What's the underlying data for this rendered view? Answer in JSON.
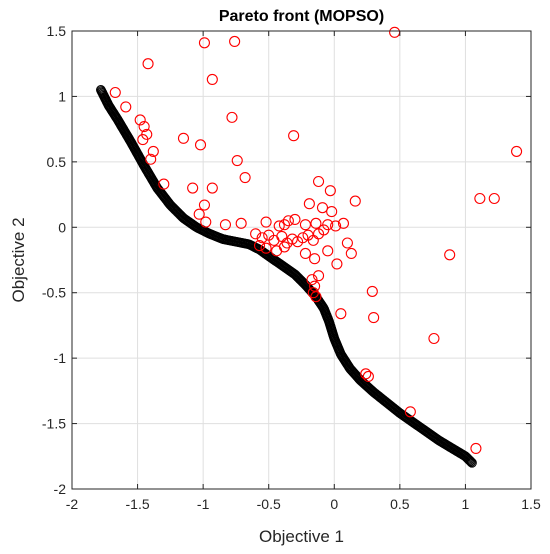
{
  "chart_data": {
    "type": "scatter",
    "title": "Pareto front (MOPSO)",
    "xlabel": "Objective 1",
    "ylabel": "Objective 2",
    "xlim": [
      -2,
      1.5
    ],
    "ylim": [
      -2,
      1.5
    ],
    "xticks": [
      -2,
      -1.5,
      -1,
      -0.5,
      0,
      0.5,
      1,
      1.5
    ],
    "yticks": [
      -2,
      -1.5,
      -1,
      -0.5,
      0,
      0.5,
      1,
      1.5
    ],
    "xtick_labels": [
      "-2",
      "-1.5",
      "-1",
      "-0.5",
      "0",
      "0.5",
      "1",
      "1.5"
    ],
    "ytick_labels": [
      "-2",
      "-1.5",
      "-1",
      "-0.5",
      "0",
      "0.5",
      "1",
      "1.5"
    ],
    "grid": true,
    "marker": "circle-open",
    "series": [
      {
        "color": "#ff0000",
        "points": [
          [
            0.46,
            1.49
          ],
          [
            -0.99,
            1.41
          ],
          [
            -0.76,
            1.42
          ],
          [
            -1.42,
            1.25
          ],
          [
            -0.93,
            1.13
          ],
          [
            -1.67,
            1.03
          ],
          [
            -1.59,
            0.92
          ],
          [
            -1.48,
            0.82
          ],
          [
            -1.45,
            0.77
          ],
          [
            -1.43,
            0.71
          ],
          [
            -1.46,
            0.67
          ],
          [
            -1.15,
            0.68
          ],
          [
            -1.02,
            0.63
          ],
          [
            -0.78,
            0.84
          ],
          [
            -0.31,
            0.7
          ],
          [
            -0.74,
            0.51
          ],
          [
            -0.68,
            0.38
          ],
          [
            -1.38,
            0.58
          ],
          [
            -1.4,
            0.52
          ],
          [
            -1.3,
            0.33
          ],
          [
            -1.08,
            0.3
          ],
          [
            -0.93,
            0.3
          ],
          [
            1.39,
            0.58
          ],
          [
            1.11,
            0.22
          ],
          [
            1.22,
            0.22
          ],
          [
            -0.12,
            0.35
          ],
          [
            -0.03,
            0.28
          ],
          [
            0.16,
            0.2
          ],
          [
            -0.09,
            0.15
          ],
          [
            -0.02,
            0.12
          ],
          [
            -0.19,
            0.18
          ],
          [
            -0.99,
            0.17
          ],
          [
            -1.03,
            0.1
          ],
          [
            -0.98,
            0.04
          ],
          [
            -0.83,
            0.02
          ],
          [
            -0.71,
            0.03
          ],
          [
            -0.52,
            0.04
          ],
          [
            -0.38,
            0.02
          ],
          [
            -0.35,
            0.05
          ],
          [
            -0.3,
            0.06
          ],
          [
            -0.42,
            0.01
          ],
          [
            -0.22,
            0.02
          ],
          [
            -0.14,
            0.03
          ],
          [
            -0.05,
            0.02
          ],
          [
            0.01,
            0.01
          ],
          [
            0.07,
            0.03
          ],
          [
            -0.6,
            -0.05
          ],
          [
            -0.55,
            -0.08
          ],
          [
            -0.5,
            -0.06
          ],
          [
            -0.46,
            -0.1
          ],
          [
            -0.4,
            -0.07
          ],
          [
            -0.36,
            -0.12
          ],
          [
            -0.32,
            -0.09
          ],
          [
            -0.28,
            -0.11
          ],
          [
            -0.24,
            -0.08
          ],
          [
            -0.2,
            -0.06
          ],
          [
            -0.16,
            -0.1
          ],
          [
            -0.12,
            -0.05
          ],
          [
            -0.08,
            -0.02
          ],
          [
            -0.57,
            -0.14
          ],
          [
            -0.52,
            -0.16
          ],
          [
            -0.44,
            -0.18
          ],
          [
            -0.38,
            -0.15
          ],
          [
            -0.22,
            -0.2
          ],
          [
            -0.15,
            -0.24
          ],
          [
            -0.05,
            -0.18
          ],
          [
            0.1,
            -0.12
          ],
          [
            0.13,
            -0.2
          ],
          [
            0.02,
            -0.28
          ],
          [
            -0.17,
            -0.4
          ],
          [
            -0.15,
            -0.45
          ],
          [
            -0.16,
            -0.5
          ],
          [
            -0.14,
            -0.53
          ],
          [
            -0.12,
            -0.37
          ],
          [
            0.05,
            -0.66
          ],
          [
            0.29,
            -0.49
          ],
          [
            0.3,
            -0.69
          ],
          [
            0.88,
            -0.21
          ],
          [
            0.76,
            -0.85
          ],
          [
            0.24,
            -1.12
          ],
          [
            0.26,
            -1.14
          ],
          [
            0.58,
            -1.41
          ],
          [
            1.08,
            -1.69
          ]
        ]
      },
      {
        "color": "#000000",
        "curve": [
          [
            -1.78,
            1.05
          ],
          [
            -1.72,
            0.93
          ],
          [
            -1.65,
            0.82
          ],
          [
            -1.55,
            0.65
          ],
          [
            -1.45,
            0.47
          ],
          [
            -1.35,
            0.3
          ],
          [
            -1.25,
            0.17
          ],
          [
            -1.15,
            0.07
          ],
          [
            -1.05,
            0.0
          ],
          [
            -0.95,
            -0.05
          ],
          [
            -0.85,
            -0.09
          ],
          [
            -0.75,
            -0.11
          ],
          [
            -0.65,
            -0.13
          ],
          [
            -0.57,
            -0.17
          ],
          [
            -0.5,
            -0.22
          ],
          [
            -0.4,
            -0.29
          ],
          [
            -0.3,
            -0.36
          ],
          [
            -0.22,
            -0.44
          ],
          [
            -0.14,
            -0.53
          ],
          [
            -0.08,
            -0.62
          ],
          [
            -0.04,
            -0.72
          ],
          [
            0.0,
            -0.85
          ],
          [
            0.05,
            -0.97
          ],
          [
            0.12,
            -1.08
          ],
          [
            0.2,
            -1.17
          ],
          [
            0.3,
            -1.26
          ],
          [
            0.4,
            -1.34
          ],
          [
            0.5,
            -1.42
          ],
          [
            0.6,
            -1.49
          ],
          [
            0.7,
            -1.56
          ],
          [
            0.8,
            -1.63
          ],
          [
            0.9,
            -1.69
          ],
          [
            1.0,
            -1.75
          ],
          [
            1.05,
            -1.8
          ]
        ],
        "count": 420
      }
    ]
  }
}
